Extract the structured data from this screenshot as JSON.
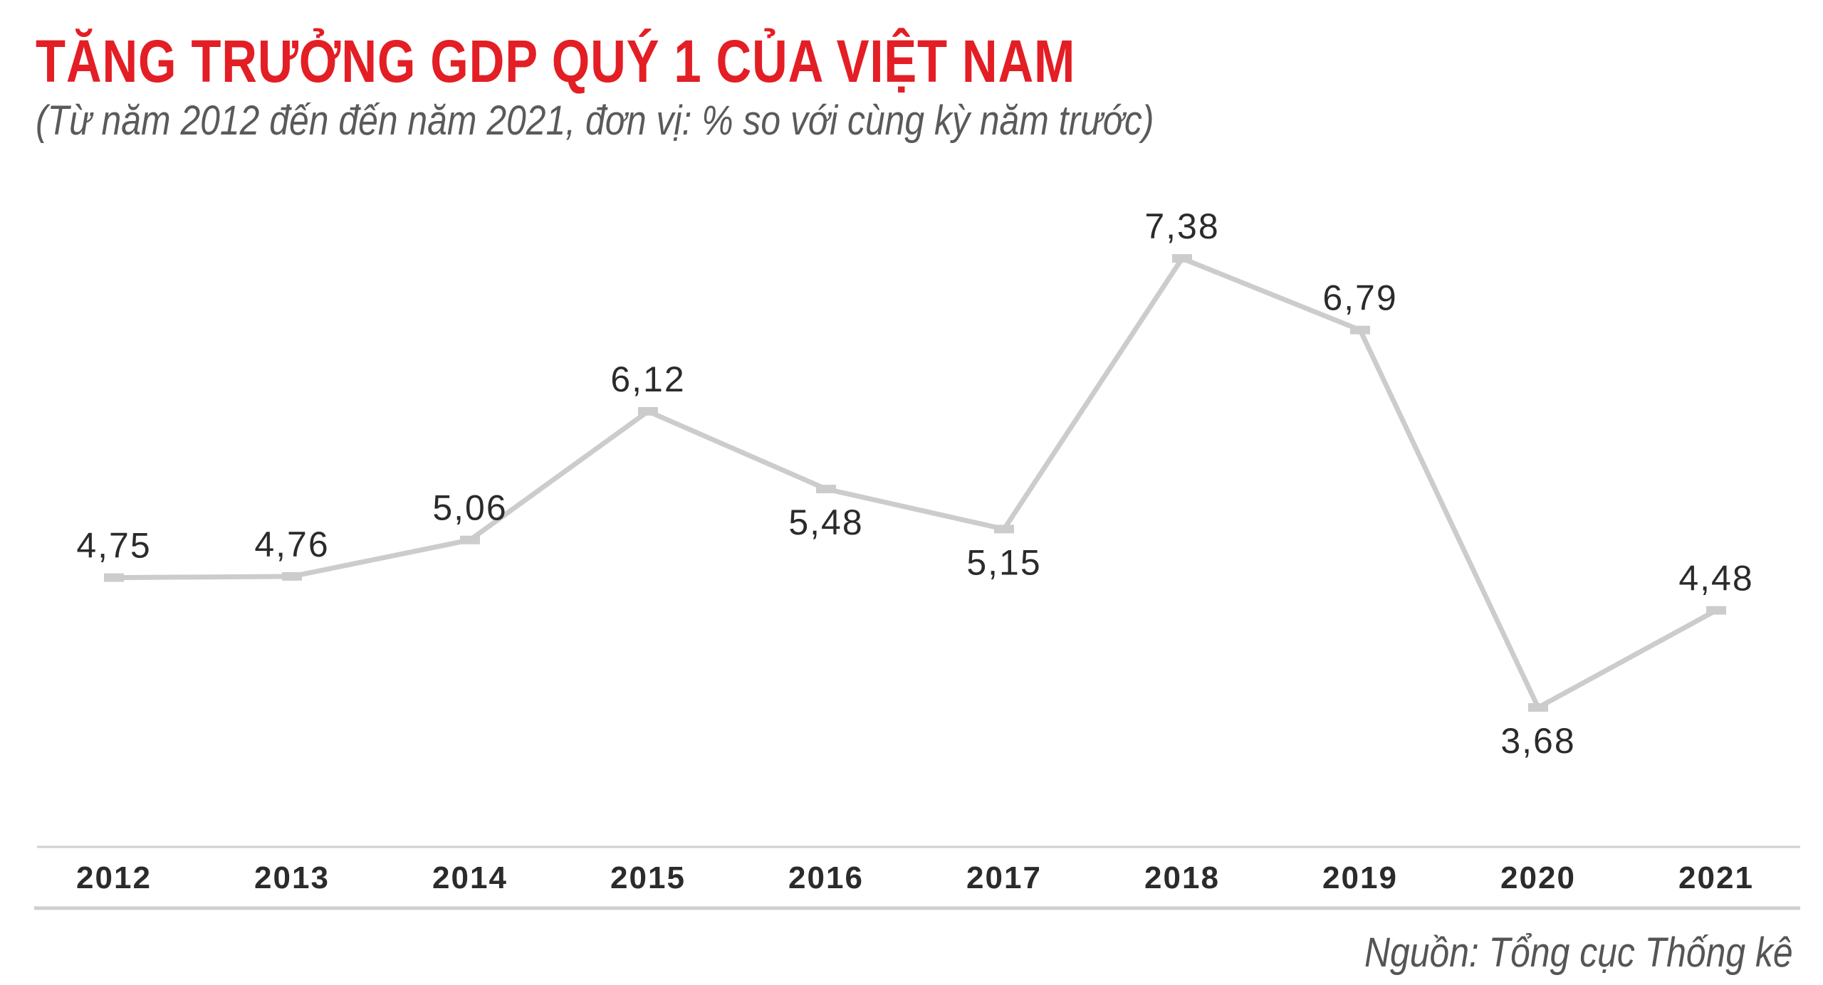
{
  "colors": {
    "title": "#e31e24",
    "subtitle": "#5a5a5a",
    "line": "#cccccc",
    "label": "#2b2b2b",
    "axis": "#cfcfcf",
    "source": "#555555"
  },
  "chart_data": {
    "type": "line",
    "title": "TĂNG TRƯỞNG GDP QUÝ 1 CỦA VIỆT NAM",
    "subtitle": "(Từ năm 2012 đến đến năm 2021, đơn vị: % so với cùng kỳ năm trước)",
    "source": "Nguồn: Tổng cục Thống kê",
    "categories": [
      "2012",
      "2013",
      "2014",
      "2015",
      "2016",
      "2017",
      "2018",
      "2019",
      "2020",
      "2021"
    ],
    "values": [
      4.75,
      4.76,
      5.06,
      6.12,
      5.48,
      5.15,
      7.38,
      6.79,
      3.68,
      4.48
    ],
    "value_labels": [
      "4,75",
      "4,76",
      "5,06",
      "6,12",
      "5,48",
      "5,15",
      "7,38",
      "6,79",
      "3,68",
      "4,48"
    ],
    "label_position": [
      "above",
      "above",
      "above",
      "above",
      "below",
      "below",
      "above",
      "above",
      "below",
      "above"
    ],
    "ylim": [
      3.0,
      7.75
    ],
    "xlabel": "",
    "ylabel": "",
    "grid": false,
    "legend": "none"
  }
}
